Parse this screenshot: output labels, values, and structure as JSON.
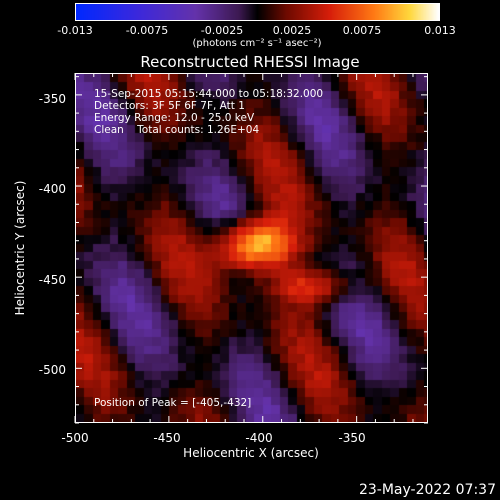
{
  "colorbar": {
    "ticks": [
      "-0.013",
      "-0.0075",
      "-0.0025",
      "0.0025",
      "0.0075",
      "0.013"
    ],
    "range": [
      -0.013,
      0.013
    ],
    "units": "(photons cm⁻² s⁻¹ asec⁻²)"
  },
  "chart_data": {
    "type": "heatmap",
    "title": "Reconstructed RHESSI Image",
    "xlabel": "Heliocentric X (arcsec)",
    "ylabel": "Heliocentric Y (arcsec)",
    "xlim": [
      -500,
      -312
    ],
    "ylim": [
      -530,
      -338
    ],
    "x_ticks": [
      "-500",
      "-450",
      "-400",
      "-350"
    ],
    "y_ticks": [
      "-350",
      "-400",
      "-450",
      "-500"
    ],
    "peak_position": [
      -405,
      -432
    ],
    "sources": [
      {
        "x": -405,
        "y": -432,
        "peak": 0.013,
        "sx": 14,
        "sy": 10
      },
      {
        "x": -372,
        "y": -455,
        "peak": 0.006,
        "sx": 16,
        "sy": 7
      }
    ],
    "colormap": "blue-purple-black-red-yellow-white",
    "grid": false
  },
  "annotations": {
    "time": "15-Sep-2015 05:15:44.000 to 05:18:32.000",
    "detectors": "Detectors: 3F 5F 6F 7F, Att 1",
    "energy": "Energy Range: 12.0 - 25.0 keV",
    "clean": "Clean    Total counts: 1.26E+04",
    "peak": "Position of Peak = [-405,-432]"
  },
  "timestamp": "23-May-2022 07:37"
}
